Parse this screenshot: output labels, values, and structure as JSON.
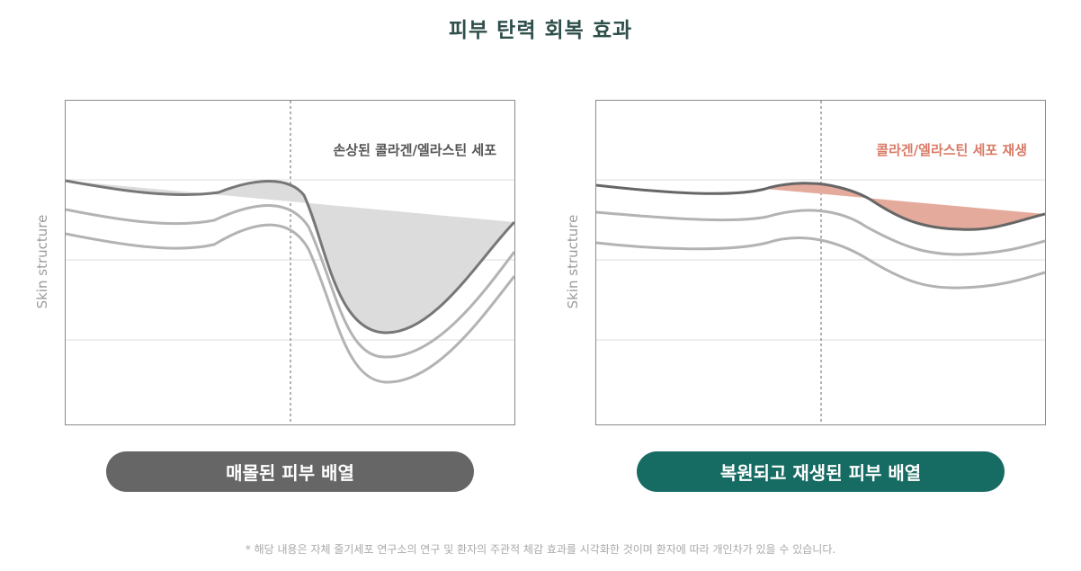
{
  "title": "피부 탄력 회복 효과",
  "left_panel": {
    "y_axis_label": "Skin structure",
    "annotation": "손상된 콜라겐/엘라스틴 세포",
    "annotation_color": "#555555",
    "fill_color": "#dcdcdc",
    "caption": "매몰된 피부 배열",
    "caption_color": "#666666"
  },
  "right_panel": {
    "y_axis_label": "Skin structure",
    "annotation": "콜라겐/엘라스틴 세포 재생",
    "annotation_color": "#d97a66",
    "fill_color": "#e4aa9c",
    "caption": "복원되고 재생된 피부 배열",
    "caption_color": "#166b63"
  },
  "footnote": "* 해당 내용은 자체 줄기세포 연구소의 연구 및 환자의 주관적 체감 효과를 시각화한 것이며 환자에 따라 개인차가 있을 수 있습니다."
}
